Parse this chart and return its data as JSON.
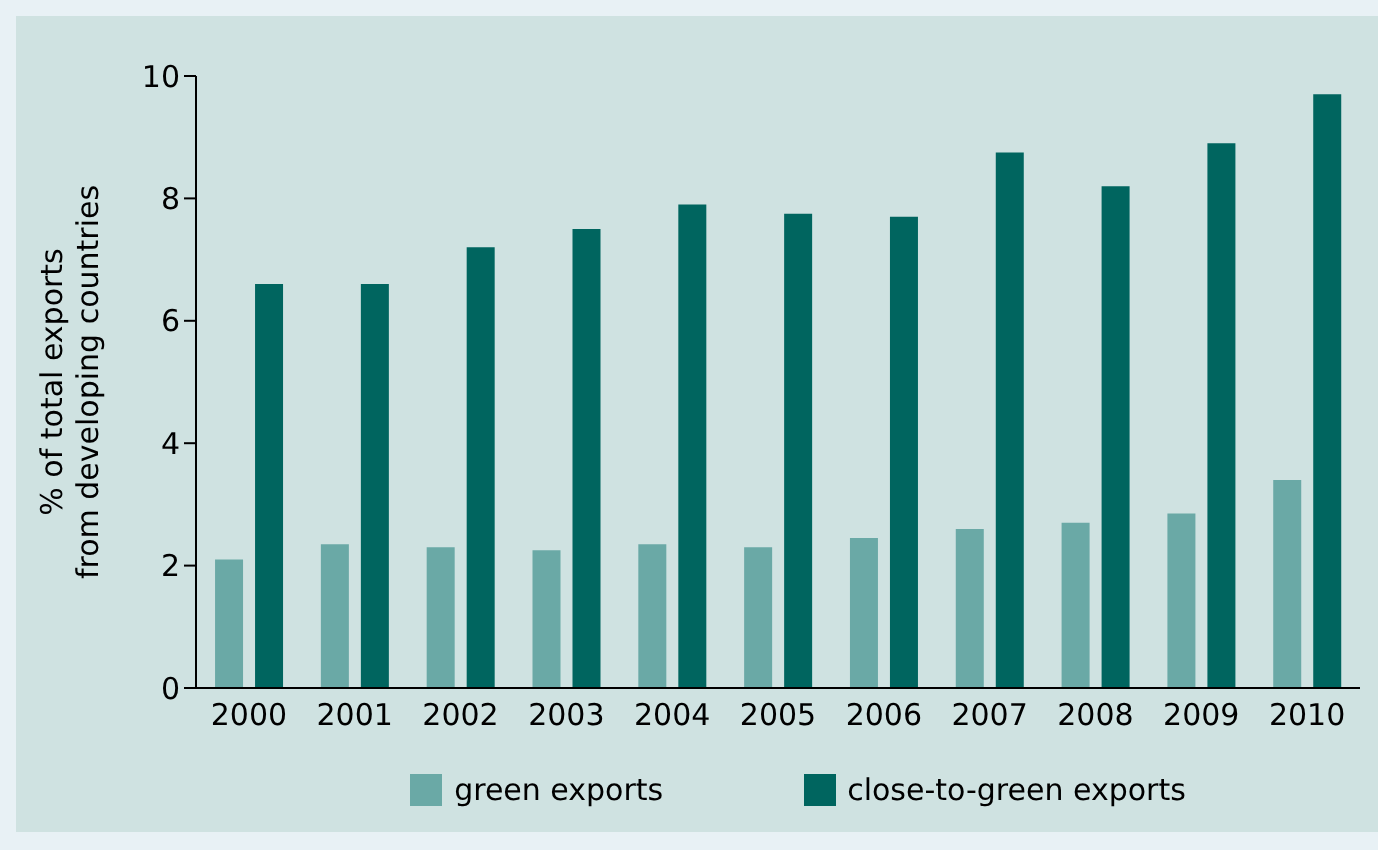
{
  "chart_data": {
    "type": "bar",
    "ylabel": "% of total exports\nfrom developing countries",
    "categories": [
      "2000",
      "2001",
      "2002",
      "2003",
      "2004",
      "2005",
      "2006",
      "2007",
      "2008",
      "2009",
      "2010"
    ],
    "series": [
      {
        "name": "green exports",
        "color": "#6aa9a6",
        "values": [
          2.1,
          2.35,
          2.3,
          2.25,
          2.35,
          2.3,
          2.45,
          2.6,
          2.7,
          2.85,
          3.4
        ]
      },
      {
        "name": "close-to-green exports",
        "color": "#00655f",
        "values": [
          6.6,
          6.6,
          7.2,
          7.5,
          7.9,
          7.75,
          7.7,
          8.75,
          8.2,
          8.9,
          9.7
        ]
      }
    ],
    "ylim": [
      0,
      10
    ],
    "yticks": [
      0,
      2,
      4,
      6,
      8,
      10
    ],
    "grid": false,
    "legend": "bottom"
  }
}
